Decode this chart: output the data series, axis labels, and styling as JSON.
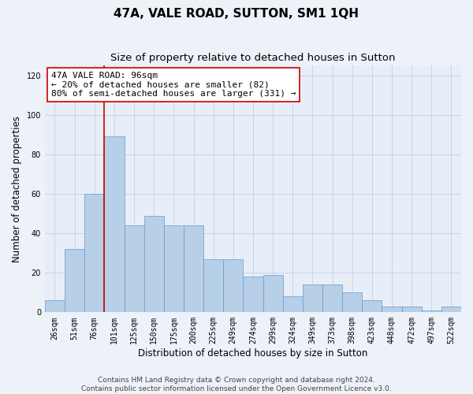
{
  "title": "47A, VALE ROAD, SUTTON, SM1 1QH",
  "subtitle": "Size of property relative to detached houses in Sutton",
  "xlabel": "Distribution of detached houses by size in Sutton",
  "ylabel": "Number of detached properties",
  "bins_heights": [
    6,
    32,
    60,
    89,
    44,
    49,
    44,
    44,
    27,
    27,
    18,
    19,
    8,
    14,
    14,
    10,
    6,
    3,
    3,
    1,
    3
  ],
  "tick_labels": [
    "26sqm",
    "51sqm",
    "76sqm",
    "101sqm",
    "125sqm",
    "150sqm",
    "175sqm",
    "200sqm",
    "225sqm",
    "249sqm",
    "274sqm",
    "299sqm",
    "324sqm",
    "349sqm",
    "373sqm",
    "398sqm",
    "423sqm",
    "448sqm",
    "472sqm",
    "497sqm",
    "522sqm"
  ],
  "bar_color": "#b8cfe8",
  "bar_edge_color": "#6699cc",
  "vline_x_idx": 3,
  "vline_color": "#cc0000",
  "annotation_line1": "47A VALE ROAD: 96sqm",
  "annotation_line2": "← 20% of detached houses are smaller (82)",
  "annotation_line3": "80% of semi-detached houses are larger (331) →",
  "annotation_box_color": "#ffffff",
  "annotation_box_edge": "#cc0000",
  "ylim": [
    0,
    125
  ],
  "yticks": [
    0,
    20,
    40,
    60,
    80,
    100,
    120
  ],
  "grid_color": "#c8d4e8",
  "bg_color": "#e8eef8",
  "fig_bg_color": "#edf1f8",
  "footer1": "Contains HM Land Registry data © Crown copyright and database right 2024.",
  "footer2": "Contains public sector information licensed under the Open Government Licence v3.0.",
  "title_fontsize": 11,
  "subtitle_fontsize": 9.5,
  "axis_label_fontsize": 8.5,
  "tick_fontsize": 7,
  "annotation_fontsize": 8,
  "footer_fontsize": 6.5
}
